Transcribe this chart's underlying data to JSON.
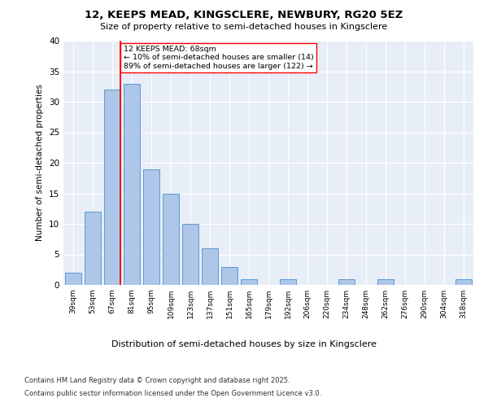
{
  "title1": "12, KEEPS MEAD, KINGSCLERE, NEWBURY, RG20 5EZ",
  "title2": "Size of property relative to semi-detached houses in Kingsclere",
  "xlabel": "Distribution of semi-detached houses by size in Kingsclere",
  "ylabel": "Number of semi-detached properties",
  "bins": [
    "39sqm",
    "53sqm",
    "67sqm",
    "81sqm",
    "95sqm",
    "109sqm",
    "123sqm",
    "137sqm",
    "151sqm",
    "165sqm",
    "179sqm",
    "192sqm",
    "206sqm",
    "220sqm",
    "234sqm",
    "248sqm",
    "262sqm",
    "276sqm",
    "290sqm",
    "304sqm",
    "318sqm"
  ],
  "values": [
    2,
    12,
    32,
    33,
    19,
    15,
    10,
    6,
    3,
    1,
    0,
    1,
    0,
    0,
    1,
    0,
    1,
    0,
    0,
    0,
    1
  ],
  "bar_color": "#aec6e8",
  "bar_edge_color": "#5b9bd5",
  "red_line_bin_index": 2,
  "annotation_title": "12 KEEPS MEAD: 68sqm",
  "annotation_line1": "← 10% of semi-detached houses are smaller (14)",
  "annotation_line2": "89% of semi-detached houses are larger (122) →",
  "ylim": [
    0,
    40
  ],
  "yticks": [
    0,
    5,
    10,
    15,
    20,
    25,
    30,
    35,
    40
  ],
  "footer1": "Contains HM Land Registry data © Crown copyright and database right 2025.",
  "footer2": "Contains public sector information licensed under the Open Government Licence v3.0.",
  "plot_bg_color": "#e8eef8",
  "grid_color": "#ffffff",
  "fig_bg_color": "#ffffff"
}
